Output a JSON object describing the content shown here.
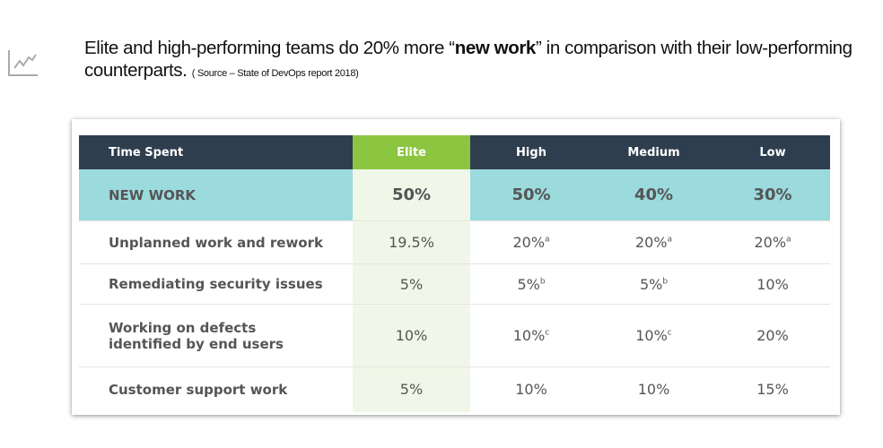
{
  "headline": {
    "pre": "Elite and high-performing teams do 20% more “",
    "bold": "new work",
    "post": "” in comparison with their low-performing counterparts.",
    "source": "( Source – State of DevOps report 2018)"
  },
  "icon": "trending-up-chart-icon",
  "colors": {
    "header": "#2f3e4e",
    "elite_header": "#8cc540",
    "new_work_row": "#9bdadd",
    "elite_column": "#f1f7e8"
  },
  "table": {
    "headers": [
      "Time Spent",
      "Elite",
      "High",
      "Medium",
      "Low"
    ],
    "rows": [
      {
        "label": "NEW WORK",
        "cells": [
          {
            "v": "50%",
            "s": ""
          },
          {
            "v": "50%",
            "s": ""
          },
          {
            "v": "40%",
            "s": ""
          },
          {
            "v": "30%",
            "s": ""
          }
        ]
      },
      {
        "label": "Unplanned work and rework",
        "cells": [
          {
            "v": "19.5%",
            "s": ""
          },
          {
            "v": "20%",
            "s": "a"
          },
          {
            "v": "20%",
            "s": "a"
          },
          {
            "v": "20%",
            "s": "a"
          }
        ]
      },
      {
        "label": "Remediating security issues",
        "cells": [
          {
            "v": "5%",
            "s": ""
          },
          {
            "v": "5%",
            "s": "b"
          },
          {
            "v": "5%",
            "s": "b"
          },
          {
            "v": "10%",
            "s": ""
          }
        ]
      },
      {
        "label": "Working on defects identified by end users",
        "cells": [
          {
            "v": "10%",
            "s": ""
          },
          {
            "v": "10%",
            "s": "c"
          },
          {
            "v": "10%",
            "s": "c"
          },
          {
            "v": "20%",
            "s": ""
          }
        ]
      },
      {
        "label": "Customer support work",
        "cells": [
          {
            "v": "5%",
            "s": ""
          },
          {
            "v": "10%",
            "s": ""
          },
          {
            "v": "10%",
            "s": ""
          },
          {
            "v": "15%",
            "s": ""
          }
        ]
      }
    ]
  }
}
